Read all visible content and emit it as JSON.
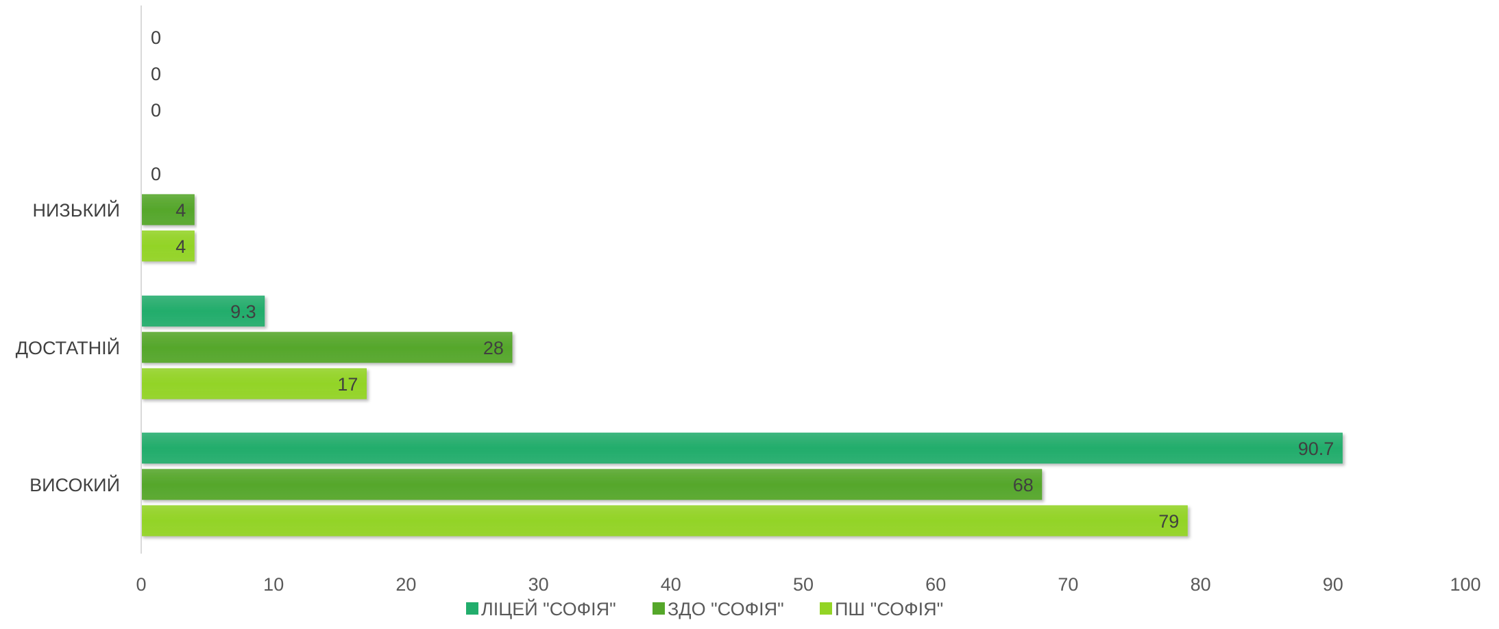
{
  "chart_data": {
    "type": "bar",
    "orientation": "horizontal",
    "categories": [
      "НИЗЬКИЙ",
      "ДОСТАТНІЙ",
      "ВИСОКИЙ"
    ],
    "series": [
      {
        "name": "ЛІЦЕЙ \"СОФІЯ\"",
        "values": [
          0,
          9.3,
          90.7
        ],
        "color": "#22ad6c"
      },
      {
        "name": "ЗДО \"СОФІЯ\"",
        "values": [
          4,
          28,
          68
        ],
        "color": "#55a72a"
      },
      {
        "name": "ПШ \"СОФІЯ\"",
        "values": [
          4,
          17,
          79
        ],
        "color": "#93d425"
      }
    ],
    "extra_labels": [
      "0",
      "0",
      "0"
    ],
    "xlim": [
      0,
      100
    ],
    "xticks": [
      0,
      10,
      20,
      30,
      40,
      50,
      60,
      70,
      80,
      90,
      100
    ],
    "grid": false,
    "legend_position": "bottom",
    "title": "",
    "xlabel": "",
    "ylabel": ""
  }
}
